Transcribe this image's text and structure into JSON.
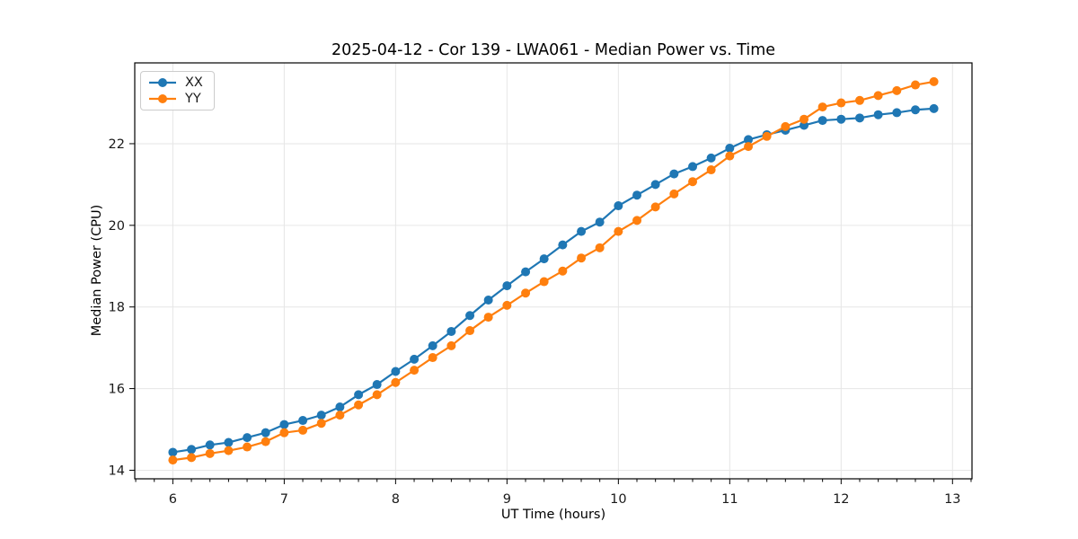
{
  "chart_data": {
    "type": "line",
    "title": "2025-04-12 - Cor 139 - LWA061 - Median Power vs. Time",
    "xlabel": "UT Time (hours)",
    "ylabel": "Median Power (CPU)",
    "xlim": [
      5.658,
      13.175
    ],
    "ylim": [
      13.79,
      23.98
    ],
    "xticks": [
      6,
      7,
      8,
      9,
      10,
      11,
      12,
      13
    ],
    "yticks": [
      14,
      16,
      18,
      20,
      22
    ],
    "minor_x_step_hours": 0.1667,
    "grid": true,
    "grid_color": "#e6e6e6",
    "axis_color": "#000000",
    "background": "#ffffff",
    "legend_position": "upper left",
    "x": [
      6.0,
      6.167,
      6.333,
      6.5,
      6.667,
      6.833,
      7.0,
      7.167,
      7.333,
      7.5,
      7.667,
      7.833,
      8.0,
      8.167,
      8.333,
      8.5,
      8.667,
      8.833,
      9.0,
      9.167,
      9.333,
      9.5,
      9.667,
      9.833,
      10.0,
      10.167,
      10.333,
      10.5,
      10.667,
      10.833,
      11.0,
      11.167,
      11.333,
      11.5,
      11.667,
      11.833,
      12.0,
      12.167,
      12.333,
      12.5,
      12.667,
      12.833
    ],
    "series": [
      {
        "name": "XX",
        "color": "#1f77b4",
        "values": [
          14.44,
          14.51,
          14.62,
          14.68,
          14.8,
          14.92,
          15.12,
          15.22,
          15.35,
          15.55,
          15.85,
          16.1,
          16.42,
          16.72,
          17.05,
          17.4,
          17.79,
          18.17,
          18.52,
          18.86,
          19.18,
          19.52,
          19.85,
          20.08,
          20.48,
          20.74,
          21.0,
          21.26,
          21.44,
          21.65,
          21.89,
          22.1,
          22.22,
          22.33,
          22.45,
          22.57,
          22.6,
          22.63,
          22.71,
          22.76,
          22.83,
          22.86
        ]
      },
      {
        "name": "YY",
        "color": "#ff7f0e",
        "values": [
          14.25,
          14.31,
          14.41,
          14.48,
          14.57,
          14.7,
          14.92,
          14.98,
          15.15,
          15.35,
          15.6,
          15.85,
          16.15,
          16.45,
          16.76,
          17.05,
          17.42,
          17.75,
          18.04,
          18.34,
          18.62,
          18.88,
          19.2,
          19.45,
          19.85,
          20.12,
          20.45,
          20.77,
          21.07,
          21.36,
          21.7,
          21.93,
          22.18,
          22.42,
          22.6,
          22.9,
          23.0,
          23.06,
          23.18,
          23.3,
          23.44,
          23.52
        ]
      }
    ]
  }
}
